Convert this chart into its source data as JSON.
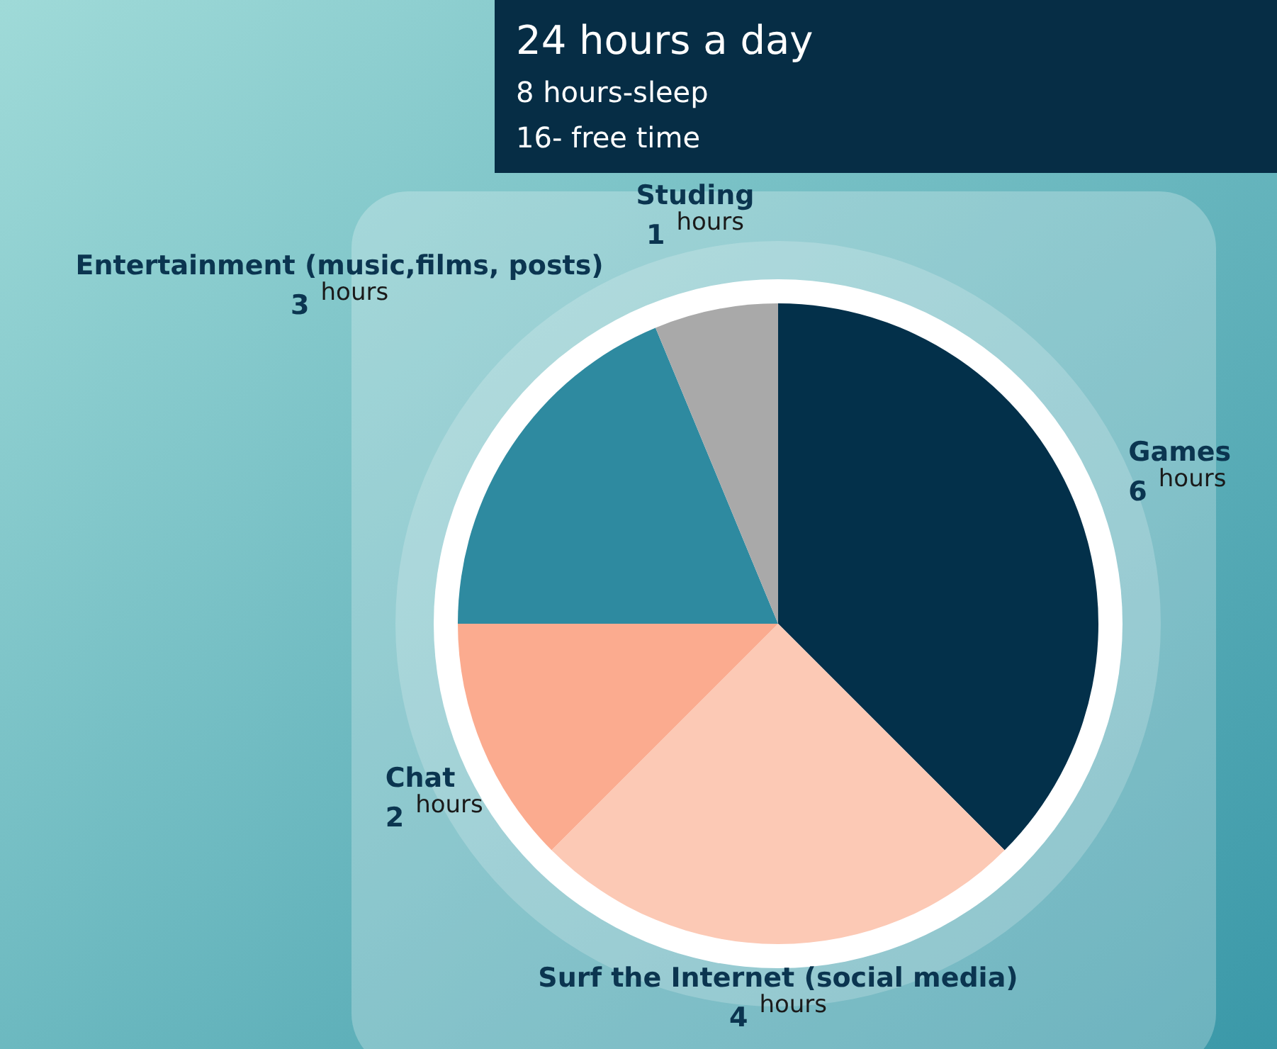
{
  "chart_data": {
    "type": "pie",
    "title": "24 hours a day",
    "annotations": [
      "8 hours-sleep",
      "16- free time"
    ],
    "categories": [
      "Games",
      "Surf the Internet (social media)",
      "Chat",
      "Entertainment (music,films, posts)",
      "Studing"
    ],
    "values": [
      6,
      4,
      2,
      3,
      1
    ],
    "value_labels": [
      "6 $^{hours}$",
      "4 $^{hours}$",
      "2 $^{hours}$",
      "3 $^{hours}$",
      "1 $^{hours}$"
    ],
    "colors": [
      "#03304a",
      "#fcc9b5",
      "#fbab8f",
      "#2e8aa0",
      "#a9a9a9"
    ]
  }
}
